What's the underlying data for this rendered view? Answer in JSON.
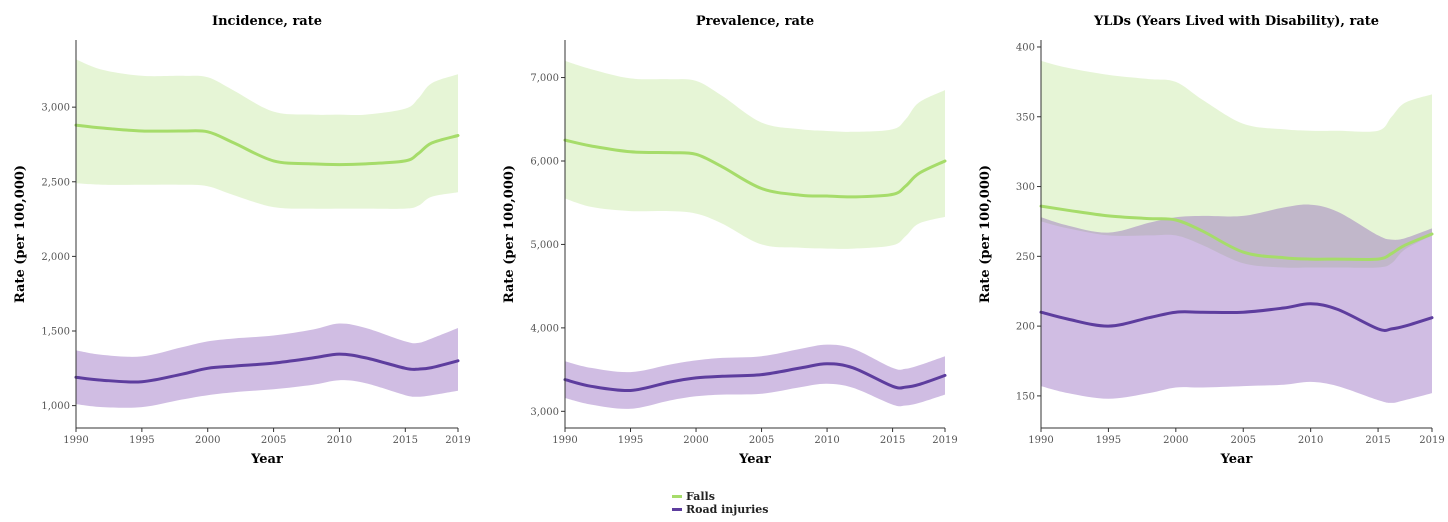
{
  "colors": {
    "falls": "#a6dc6a",
    "falls_band": "#a6dc6a",
    "road": "#5d3d9e",
    "road_band": "#8a5bb8"
  },
  "legend": {
    "items": [
      {
        "key": "falls",
        "label": "Falls"
      },
      {
        "key": "road",
        "label": "Road injuries"
      }
    ],
    "position": "bottom-center"
  },
  "chart_data": [
    {
      "type": "line",
      "title": "Incidence, rate",
      "xlabel": "Year",
      "ylabel": "Rate (per 100,000)",
      "xlim": [
        1990,
        2019
      ],
      "ylim": [
        850,
        3450
      ],
      "xticks": [
        1990,
        1995,
        2000,
        2005,
        2010,
        2015,
        2019
      ],
      "yticks": [
        1000,
        1500,
        2000,
        2500,
        3000
      ],
      "ytick_labels": [
        "1,000",
        "1,500",
        "2,000",
        "2,500",
        "3,000"
      ],
      "x": [
        1990,
        1992,
        1995,
        1998,
        2000,
        2002,
        2005,
        2008,
        2010,
        2012,
        2015,
        2016,
        2017,
        2019
      ],
      "series": [
        {
          "name": "Falls",
          "key": "falls",
          "values": [
            2880,
            2860,
            2840,
            2840,
            2835,
            2760,
            2640,
            2620,
            2615,
            2620,
            2640,
            2690,
            2760,
            2810
          ],
          "lower": [
            2490,
            2480,
            2480,
            2480,
            2470,
            2410,
            2330,
            2320,
            2320,
            2320,
            2320,
            2340,
            2400,
            2430
          ],
          "upper": [
            3320,
            3250,
            3210,
            3210,
            3200,
            3110,
            2970,
            2950,
            2950,
            2950,
            2990,
            3060,
            3160,
            3220
          ]
        },
        {
          "name": "Road injuries",
          "key": "road",
          "values": [
            1190,
            1170,
            1160,
            1210,
            1250,
            1265,
            1285,
            1320,
            1345,
            1320,
            1250,
            1245,
            1255,
            1300
          ],
          "lower": [
            1010,
            990,
            990,
            1040,
            1070,
            1090,
            1110,
            1140,
            1170,
            1150,
            1070,
            1060,
            1070,
            1100
          ],
          "upper": [
            1370,
            1340,
            1330,
            1390,
            1430,
            1450,
            1470,
            1510,
            1550,
            1520,
            1430,
            1420,
            1450,
            1520
          ]
        }
      ]
    },
    {
      "type": "line",
      "title": "Prevalence, rate",
      "xlabel": "Year",
      "ylabel": "Rate (per 100,000)",
      "xlim": [
        1990,
        2019
      ],
      "ylim": [
        2800,
        7450
      ],
      "xticks": [
        1990,
        1995,
        2000,
        2005,
        2010,
        2015,
        2019
      ],
      "yticks": [
        3000,
        4000,
        5000,
        6000,
        7000
      ],
      "ytick_labels": [
        "3,000",
        "4,000",
        "5,000",
        "6,000",
        "7,000"
      ],
      "x": [
        1990,
        1992,
        1995,
        1998,
        2000,
        2002,
        2005,
        2008,
        2010,
        2012,
        2015,
        2016,
        2017,
        2019
      ],
      "series": [
        {
          "name": "Falls",
          "key": "falls",
          "values": [
            6250,
            6180,
            6110,
            6100,
            6080,
            5930,
            5670,
            5590,
            5580,
            5570,
            5600,
            5700,
            5850,
            6000
          ],
          "lower": [
            5550,
            5450,
            5400,
            5400,
            5370,
            5250,
            5000,
            4960,
            4950,
            4950,
            4990,
            5100,
            5250,
            5330
          ],
          "upper": [
            7200,
            7100,
            6990,
            6980,
            6960,
            6780,
            6460,
            6380,
            6360,
            6350,
            6380,
            6500,
            6700,
            6850
          ]
        },
        {
          "name": "Road injuries",
          "key": "road",
          "values": [
            3380,
            3300,
            3250,
            3350,
            3400,
            3420,
            3440,
            3520,
            3570,
            3520,
            3300,
            3290,
            3320,
            3430
          ],
          "lower": [
            3160,
            3080,
            3030,
            3130,
            3180,
            3200,
            3210,
            3290,
            3330,
            3280,
            3080,
            3070,
            3100,
            3200
          ],
          "upper": [
            3600,
            3520,
            3470,
            3560,
            3610,
            3640,
            3660,
            3750,
            3800,
            3750,
            3520,
            3510,
            3550,
            3660
          ]
        }
      ]
    },
    {
      "type": "line",
      "title": "YLDs (Years Lived with Disability), rate",
      "xlabel": "Year",
      "ylabel": "Rate (per 100,000)",
      "xlim": [
        1990,
        2019
      ],
      "ylim": [
        127,
        405
      ],
      "xticks": [
        1990,
        1995,
        2000,
        2005,
        2010,
        2015,
        2019
      ],
      "yticks": [
        150,
        200,
        250,
        300,
        350,
        400
      ],
      "ytick_labels": [
        "150",
        "200",
        "250",
        "300",
        "350",
        "400"
      ],
      "x": [
        1990,
        1992,
        1995,
        1998,
        2000,
        2002,
        2005,
        2008,
        2010,
        2012,
        2015,
        2016,
        2017,
        2019
      ],
      "series": [
        {
          "name": "Falls",
          "key": "falls",
          "values": [
            286,
            283,
            279,
            277,
            276,
            268,
            253,
            249,
            248,
            248,
            248,
            252,
            258,
            266
          ],
          "lower": [
            275,
            270,
            265,
            265,
            265,
            258,
            245,
            242,
            242,
            242,
            242,
            245,
            255,
            265
          ],
          "upper": [
            390,
            385,
            380,
            377,
            375,
            362,
            345,
            341,
            340,
            340,
            340,
            350,
            360,
            366
          ]
        },
        {
          "name": "Road injuries",
          "key": "road",
          "values": [
            210,
            205,
            200,
            206,
            210,
            210,
            210,
            213,
            216,
            212,
            198,
            198,
            200,
            206
          ],
          "lower": [
            157,
            152,
            148,
            152,
            156,
            156,
            157,
            158,
            160,
            157,
            147,
            145,
            147,
            152
          ],
          "upper": [
            278,
            272,
            267,
            274,
            278,
            279,
            279,
            285,
            287,
            282,
            265,
            262,
            263,
            270
          ]
        }
      ]
    }
  ]
}
